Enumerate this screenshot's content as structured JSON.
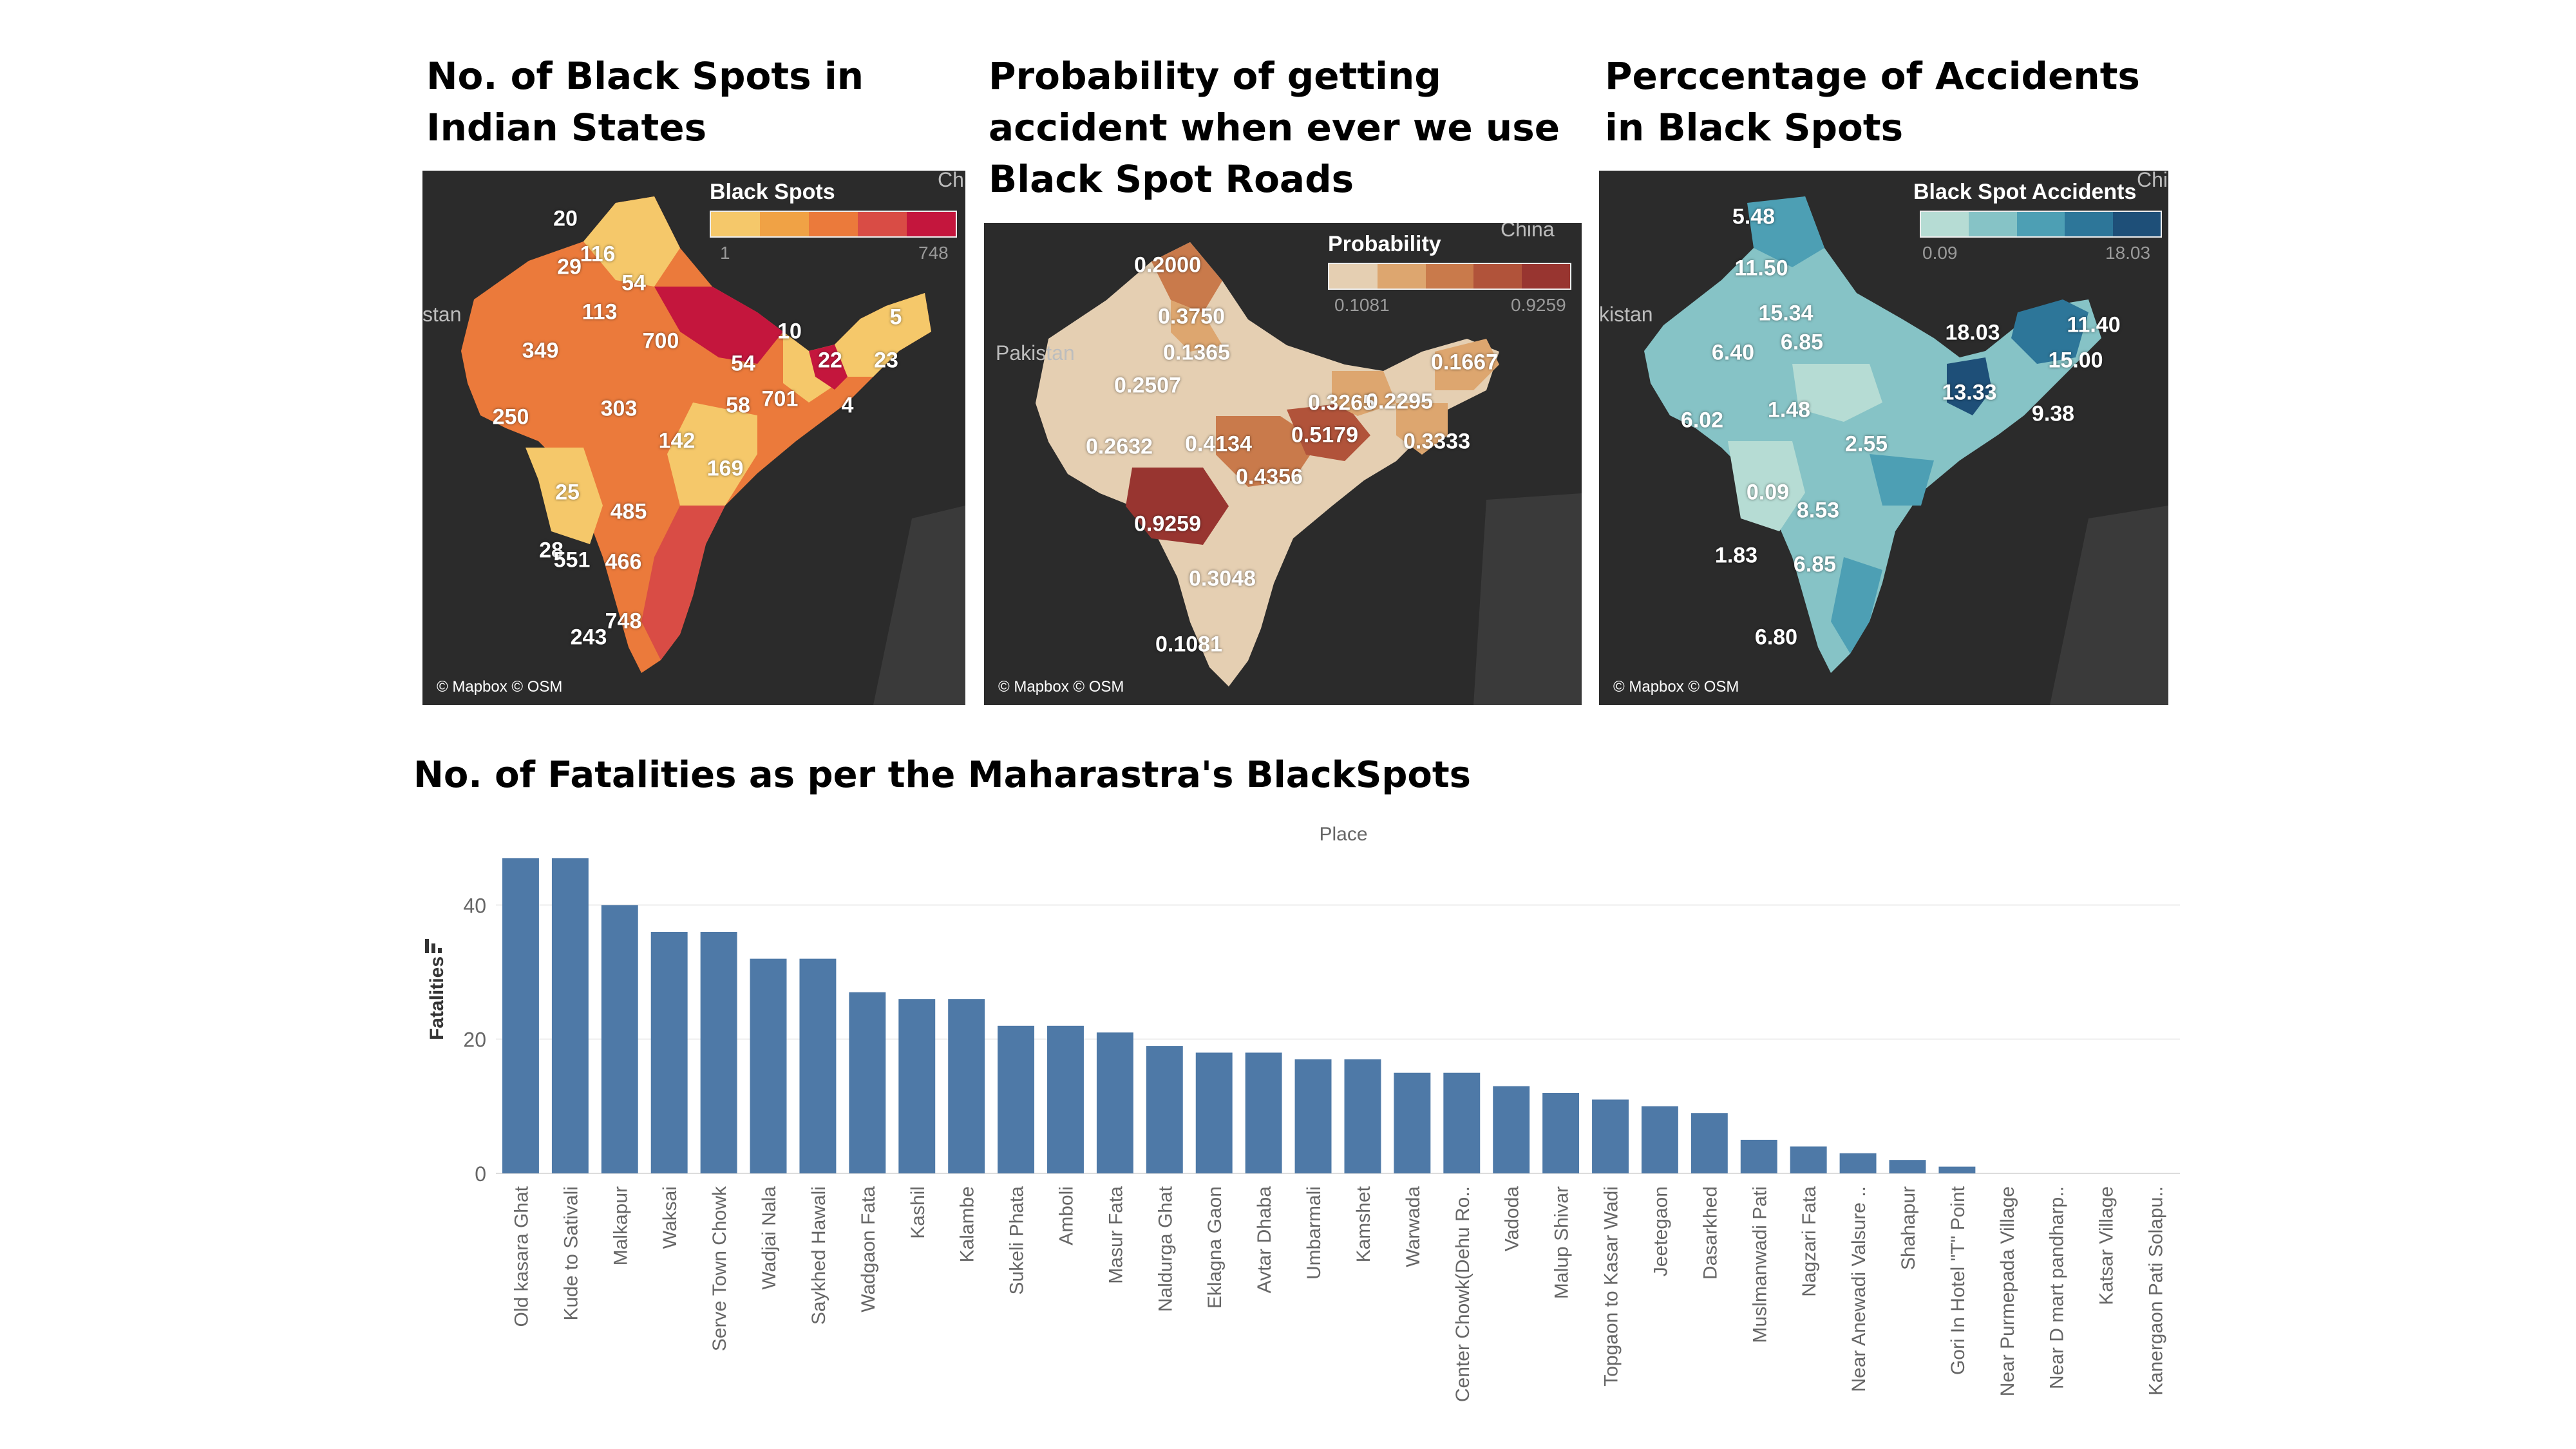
{
  "titles": {
    "map1": [
      "No. of Black Spots in",
      "Indian States"
    ],
    "map2": [
      "Probability of getting",
      "accident when ever we use",
      "Black Spot Roads"
    ],
    "map3": [
      "Perccentage of Accidents",
      "in Black Spots"
    ],
    "bars": "No. of Fatalities as per the Maharastra's BlackSpots"
  },
  "maps": [
    {
      "legend_title": "Black Spots",
      "legend_min": "1",
      "legend_max": "748",
      "colors": [
        "#f5c86a",
        "#f0a245",
        "#eb7a3b",
        "#d94c45",
        "#c4163d"
      ],
      "words": [
        {
          "text": "stan"
        },
        {
          "text": "Chi"
        }
      ],
      "labels": [
        "20",
        "116",
        "29",
        "54",
        "113",
        "349",
        "700",
        "10",
        "5",
        "23",
        "54",
        "22",
        "58",
        "701",
        "4",
        "250",
        "303",
        "142",
        "169",
        "25",
        "485",
        "28",
        "551",
        "466",
        "748",
        "243"
      ],
      "credit": "© Mapbox © OSM"
    },
    {
      "legend_title": "Probability",
      "legend_min": "0.1081",
      "legend_max": "0.9259",
      "colors": [
        "#e5cfb2",
        "#dda66f",
        "#c97a4b",
        "#b1533a",
        "#983530"
      ],
      "words": [
        {
          "text": "Pakistan"
        },
        {
          "text": "China"
        }
      ],
      "labels": [
        "0.2000",
        "0.3750",
        "0.1365",
        "0.2507",
        "0.1667",
        "0.3265",
        "0.2295",
        "0.2632",
        "0.4134",
        "0.5179",
        "0.3333",
        "0.4356",
        "0.9259",
        "0.3048",
        "0.1081"
      ],
      "credit": "© Mapbox © OSM"
    },
    {
      "legend_title": "Black Spot Accidents",
      "legend_min": "0.09",
      "legend_max": "18.03",
      "colors": [
        "#b6dcd4",
        "#86c3c6",
        "#4d9fb4",
        "#2d7699",
        "#1e4f78"
      ],
      "words": [
        {
          "text": "kistan"
        },
        {
          "text": "Chi"
        }
      ],
      "labels": [
        "5.48",
        "11.50",
        "15.34",
        "6.40",
        "6.85",
        "18.03",
        "11.40",
        "15.00",
        "13.33",
        "9.38",
        "6.02",
        "1.48",
        "2.55",
        "0.09",
        "8.53",
        "1.83",
        "6.85",
        "6.80"
      ],
      "credit": "© Mapbox © OSM"
    }
  ],
  "chart_data": {
    "type": "bar",
    "title": "No. of Fatalities as per the Maharastra's BlackSpots",
    "column_header": "Place",
    "ylabel": "Fatalities",
    "ylim": [
      0,
      48
    ],
    "yticks": [
      0,
      20,
      40
    ],
    "bar_color": "#4e79a7",
    "categories": [
      "Old kasara Ghat",
      "Kude to Sativali",
      "Malkapur",
      "Waksai",
      "Serve Town Chowk",
      "Wadjai Nala",
      "Saykhed Hawali",
      "Wadgaon Fata",
      "Kashil",
      "Kalambe",
      "Sukeli Phata",
      "Amboli",
      "Masur Fata",
      "Naldurga Ghat",
      "Eklagna Gaon",
      "Avtar Dhaba",
      "Umbarmali",
      "Kamshet",
      "Warwada",
      "Center Chowk(Dehu Ro..",
      "Vadoda",
      "Malup Shivar",
      "Topgaon to Kasar Wadi",
      "Jeetegaon",
      "Dasarkhed",
      "Muslmanwadi Pati",
      "Nagzari Fata",
      "Near Anewadi Valsure ..",
      "Shahapur",
      "Gori In Hotel \"T\" Point",
      "Near Purmepada Village",
      "Near D mart pandharp..",
      "Katsar Village",
      "Kanergaon Pati Solapu.."
    ],
    "values": [
      47,
      47,
      40,
      36,
      36,
      32,
      32,
      27,
      26,
      26,
      22,
      22,
      21,
      19,
      18,
      18,
      17,
      17,
      15,
      15,
      13,
      12,
      11,
      10,
      9,
      5,
      4,
      3,
      2,
      1,
      0,
      0,
      0,
      0
    ]
  }
}
